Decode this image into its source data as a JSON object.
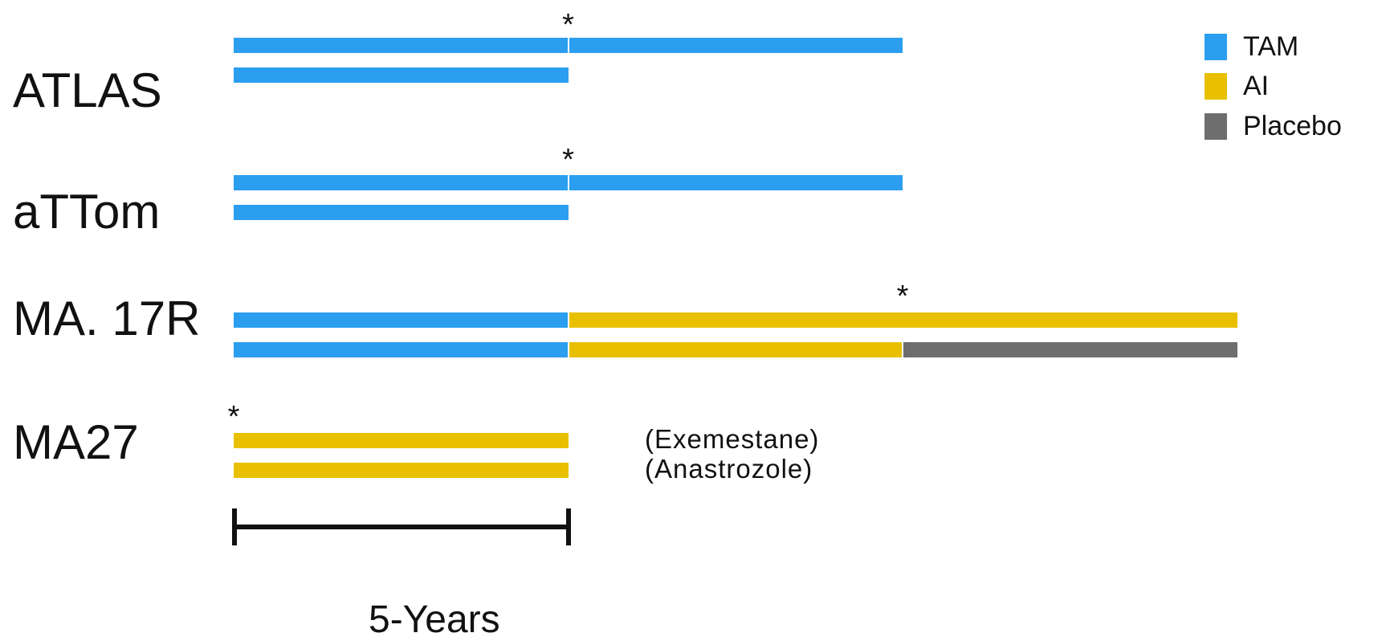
{
  "colors": {
    "tam": "#2b9ef0",
    "ai": "#e8c000",
    "placebo": "#6e6e6e",
    "ink": "#111111"
  },
  "legend": [
    {
      "key": "tam",
      "label": "TAM"
    },
    {
      "key": "ai",
      "label": "AI"
    },
    {
      "key": "placebo",
      "label": "Placebo"
    }
  ],
  "scale": {
    "label": "5-Years",
    "years": 5
  },
  "trials": [
    {
      "name": "ATLAS",
      "arms": [
        {
          "segments": [
            {
              "type": "tam",
              "start": 0,
              "end": 5
            },
            {
              "type": "tam",
              "start": 5,
              "end": 10
            }
          ],
          "note": ""
        },
        {
          "segments": [
            {
              "type": "tam",
              "start": 0,
              "end": 5
            }
          ],
          "note": ""
        }
      ],
      "marker": {
        "symbol": "*",
        "at": 5
      }
    },
    {
      "name": "aTTom",
      "arms": [
        {
          "segments": [
            {
              "type": "tam",
              "start": 0,
              "end": 5
            },
            {
              "type": "tam",
              "start": 5,
              "end": 10
            }
          ],
          "note": ""
        },
        {
          "segments": [
            {
              "type": "tam",
              "start": 0,
              "end": 5
            }
          ],
          "note": ""
        }
      ],
      "marker": {
        "symbol": "*",
        "at": 5
      }
    },
    {
      "name": "MA. 17R",
      "arms": [
        {
          "segments": [
            {
              "type": "tam",
              "start": 0,
              "end": 5
            },
            {
              "type": "ai",
              "start": 5,
              "end": 15
            }
          ],
          "note": ""
        },
        {
          "segments": [
            {
              "type": "tam",
              "start": 0,
              "end": 5
            },
            {
              "type": "ai",
              "start": 5,
              "end": 10
            },
            {
              "type": "placebo",
              "start": 10,
              "end": 15
            }
          ],
          "note": ""
        }
      ],
      "marker": {
        "symbol": "*",
        "at": 10
      }
    },
    {
      "name": "MA27",
      "arms": [
        {
          "segments": [
            {
              "type": "ai",
              "start": 0,
              "end": 5
            }
          ],
          "note": "(Exemestane)"
        },
        {
          "segments": [
            {
              "type": "ai",
              "start": 0,
              "end": 5
            }
          ],
          "note": "(Anastrozole)"
        }
      ],
      "marker": {
        "symbol": "*",
        "at": 0
      }
    }
  ]
}
